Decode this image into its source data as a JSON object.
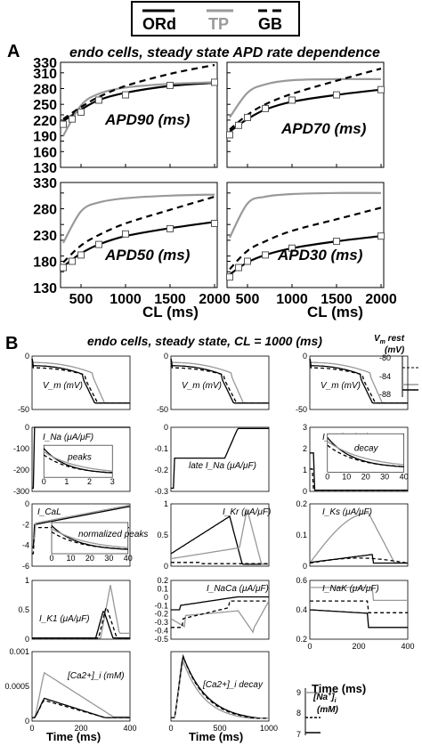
{
  "legend": {
    "items": [
      {
        "label": "ORd",
        "color": "#000000",
        "dash": "solid"
      },
      {
        "label": "TP",
        "color": "#999999",
        "dash": "solid"
      },
      {
        "label": "GB",
        "color": "#000000",
        "dash": "dashed"
      }
    ]
  },
  "colors": {
    "ord": "#000000",
    "tp": "#999999",
    "gb": "#000000",
    "experiment_marker": "#555555"
  },
  "panel_a": {
    "letter": "A",
    "title": "endo cells, steady state APD rate dependence",
    "xlabel": "CL (ms)"
  },
  "panel_b": {
    "letter": "B",
    "title": "endo cells, steady state, CL = 1000 (ms)",
    "xlabel": "Time (ms)",
    "vm_rest_label": "V",
    "vm_rest_sub": "m",
    "vm_rest_suffix": " rest",
    "vm_rest_unit": "(mV)",
    "vm_rest_ticks": [
      "-80",
      "-84",
      "-88"
    ],
    "nai_label": "[Na",
    "nai_sup": "+",
    "nai_suffix": "]",
    "nai_sub": "i",
    "nai_unit": "(mM)",
    "nai_ticks": [
      "9",
      "8",
      "7"
    ]
  },
  "chart_data": [
    {
      "type": "line",
      "title": "APD90 (ms)",
      "xlabel": "CL (ms)",
      "xlim": [
        300,
        2000
      ],
      "ylim": [
        130,
        330
      ],
      "x_ticks": [
        "500",
        "1000",
        "1500",
        "2000"
      ],
      "y_ticks": [
        "130",
        "160",
        "190",
        "220",
        "250",
        "280",
        "310",
        "330"
      ],
      "series": [
        {
          "name": "ORd",
          "x": [
            300,
            500,
            700,
            1000,
            1500,
            2000
          ],
          "values": [
            218,
            240,
            258,
            272,
            285,
            291
          ]
        },
        {
          "name": "TP",
          "x": [
            300,
            500,
            700,
            1000,
            1500,
            2000
          ],
          "values": [
            190,
            248,
            270,
            282,
            289,
            292
          ]
        },
        {
          "name": "GB",
          "x": [
            300,
            500,
            700,
            1000,
            1500,
            2000
          ],
          "values": [
            222,
            245,
            264,
            285,
            308,
            325
          ]
        },
        {
          "name": "Experiment",
          "x": [
            300,
            400,
            500,
            700,
            1000,
            1500,
            2000
          ],
          "values": [
            212,
            222,
            235,
            258,
            268,
            286,
            292
          ]
        }
      ]
    },
    {
      "type": "line",
      "title": "APD70 (ms)",
      "xlabel": "CL (ms)",
      "xlim": [
        300,
        2000
      ],
      "ylim": [
        130,
        330
      ],
      "x_ticks": [
        "500",
        "1000",
        "1500",
        "2000"
      ],
      "series": [
        {
          "name": "ORd",
          "x": [
            300,
            500,
            700,
            1000,
            1500,
            2000
          ],
          "values": [
            198,
            222,
            240,
            255,
            268,
            278
          ]
        },
        {
          "name": "TP",
          "x": [
            300,
            500,
            700,
            1000,
            1500,
            2000
          ],
          "values": [
            225,
            272,
            288,
            296,
            298,
            298
          ]
        },
        {
          "name": "GB",
          "x": [
            300,
            500,
            700,
            1000,
            1500,
            2000
          ],
          "values": [
            202,
            230,
            250,
            270,
            295,
            318
          ]
        },
        {
          "name": "Experiment",
          "x": [
            300,
            400,
            500,
            700,
            1000,
            1500,
            2000
          ],
          "values": [
            192,
            210,
            225,
            242,
            258,
            268,
            278
          ]
        }
      ]
    },
    {
      "type": "line",
      "title": "APD50 (ms)",
      "xlabel": "CL (ms)",
      "xlim": [
        300,
        2000
      ],
      "ylim": [
        130,
        330
      ],
      "x_ticks": [
        "500",
        "1000",
        "1500",
        "2000"
      ],
      "y_ticks": [
        "130",
        "180",
        "230",
        "280",
        "330"
      ],
      "series": [
        {
          "name": "ORd",
          "x": [
            300,
            500,
            700,
            1000,
            1500,
            2000
          ],
          "values": [
            170,
            195,
            212,
            228,
            243,
            255
          ]
        },
        {
          "name": "TP",
          "x": [
            300,
            500,
            700,
            1000,
            1500,
            2000
          ],
          "values": [
            215,
            275,
            292,
            300,
            305,
            307
          ]
        },
        {
          "name": "GB",
          "x": [
            300,
            500,
            700,
            1000,
            1500,
            2000
          ],
          "values": [
            178,
            210,
            230,
            252,
            278,
            303
          ]
        },
        {
          "name": "Experiment",
          "x": [
            300,
            400,
            500,
            700,
            1000,
            1500,
            2000
          ],
          "values": [
            168,
            180,
            192,
            212,
            232,
            242,
            252
          ]
        }
      ]
    },
    {
      "type": "line",
      "title": "APD30 (ms)",
      "xlabel": "CL (ms)",
      "xlim": [
        300,
        2000
      ],
      "ylim": [
        130,
        330
      ],
      "x_ticks": [
        "500",
        "1000",
        "1500",
        "2000"
      ],
      "series": [
        {
          "name": "ORd",
          "x": [
            300,
            500,
            700,
            1000,
            1500,
            2000
          ],
          "values": [
            155,
            178,
            192,
            205,
            218,
            228
          ]
        },
        {
          "name": "TP",
          "x": [
            300,
            500,
            700,
            1000,
            1500,
            2000
          ],
          "values": [
            225,
            290,
            303,
            308,
            310,
            310
          ]
        },
        {
          "name": "GB",
          "x": [
            300,
            500,
            700,
            1000,
            1500,
            2000
          ],
          "values": [
            165,
            200,
            218,
            238,
            260,
            282
          ]
        },
        {
          "name": "Experiment",
          "x": [
            300,
            400,
            500,
            700,
            1000,
            1500,
            2000
          ],
          "values": [
            150,
            168,
            180,
            192,
            205,
            218,
            228
          ]
        }
      ]
    },
    {
      "type": "line",
      "title": "V_m (mV)",
      "panel": "ord_vm",
      "xlim": [
        0,
        400
      ],
      "y_ticks": [
        "0",
        "-50"
      ]
    },
    {
      "type": "line",
      "title": "V_m (mV)",
      "panel": "tp_vm",
      "xlim": [
        0,
        400
      ],
      "y_ticks": [
        "0",
        "-50"
      ]
    },
    {
      "type": "line",
      "title": "V_m (mV)",
      "panel": "gb_vm",
      "xlim": [
        0,
        400
      ],
      "y_ticks": [
        "0",
        "-50"
      ]
    },
    {
      "type": "line",
      "title": "I_Na (μA/μF)",
      "y_ticks": [
        "0",
        "-100",
        "-200",
        "-300"
      ],
      "inset": {
        "label": "peaks",
        "x_ticks": [
          "0",
          "1",
          "2",
          "3"
        ]
      }
    },
    {
      "type": "line",
      "title": "late I_Na (μA/μF)",
      "y_ticks": [
        "0",
        "-0.1",
        "-0.2",
        "-0.3"
      ]
    },
    {
      "type": "line",
      "title": "I_to (μA/μF)",
      "y_ticks": [
        "3",
        "2",
        "1",
        "0"
      ],
      "inset": {
        "label": "decay",
        "x_ticks": [
          "0",
          "10",
          "20",
          "30",
          "40"
        ]
      }
    },
    {
      "type": "line",
      "title": "I_CaL",
      "y_ticks": [
        "0",
        "-2",
        "-4",
        "-6"
      ],
      "inset": {
        "label": "normalized peaks",
        "x_ticks": [
          "0",
          "10",
          "20",
          "30",
          "40"
        ]
      }
    },
    {
      "type": "line",
      "title": "I_Kr (μA/μF)",
      "y_ticks": [
        "1",
        "0.5",
        "0"
      ]
    },
    {
      "type": "line",
      "title": "I_Ks (μA/μF)",
      "y_ticks": [
        "0.2",
        "0.1",
        "0"
      ]
    },
    {
      "type": "line",
      "title": "I_K1 (μA/μF)",
      "y_ticks": [
        "1",
        "0.5",
        "0"
      ]
    },
    {
      "type": "line",
      "title": "I_NaCa (μA/μF)",
      "y_ticks": [
        "0.2",
        "0.1",
        "0",
        "-0.1",
        "-0.2",
        "-0.3",
        "-0.4",
        "-0.5"
      ]
    },
    {
      "type": "line",
      "title": "I_NaK (μA/μF)",
      "y_ticks": [
        "0.6",
        "0.4",
        "0.2"
      ]
    },
    {
      "type": "line",
      "title": "[Ca2+]_i (mM)",
      "xlabel": "Time (ms)",
      "x_ticks": [
        "0",
        "200",
        "400"
      ],
      "y_ticks": [
        "0.001",
        "0.0005",
        "0"
      ]
    },
    {
      "type": "line",
      "title": "[Ca2+]_i decay",
      "xlabel": "Time (ms)",
      "x_ticks": [
        "0",
        "500",
        "1000"
      ]
    },
    {
      "type": "line",
      "title": "[Na+]_i (mM)",
      "xlabel": "Time (ms)",
      "x_ticks": [
        "0",
        "200",
        "400"
      ]
    }
  ]
}
